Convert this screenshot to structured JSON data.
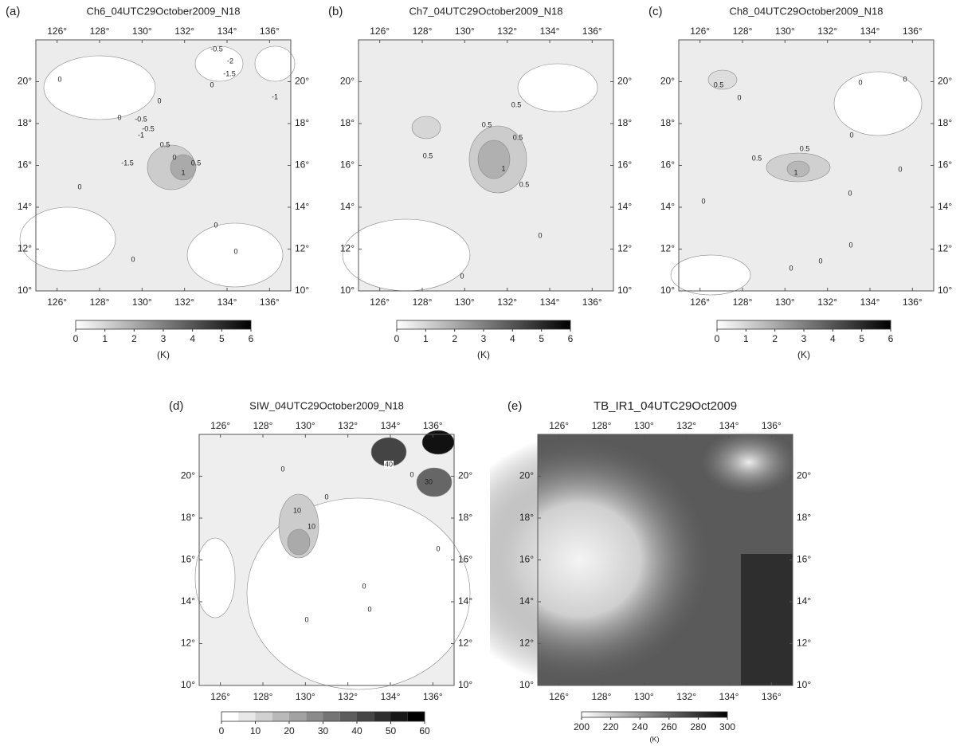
{
  "map": {
    "xlim": [
      125,
      137
    ],
    "ylim": [
      10,
      22
    ],
    "xticks": [
      {
        "value": 126,
        "label": "126°"
      },
      {
        "value": 128,
        "label": "128°"
      },
      {
        "value": 130,
        "label": "130°"
      },
      {
        "value": 132,
        "label": "132°"
      },
      {
        "value": 134,
        "label": "134°"
      },
      {
        "value": 136,
        "label": "136°"
      }
    ],
    "yticks": [
      {
        "value": 10,
        "label": "10°"
      },
      {
        "value": 12,
        "label": "12°"
      },
      {
        "value": 14,
        "label": "14°"
      },
      {
        "value": 16,
        "label": "16°"
      },
      {
        "value": 18,
        "label": "18°"
      },
      {
        "value": 20,
        "label": "20°"
      }
    ]
  },
  "panels": [
    {
      "tag": "(a)",
      "title": "Ch6_04UTC29October2009_N18",
      "contour_labels": [
        "0",
        "-0.5",
        "-2",
        "-1.5",
        "0",
        "0",
        "-1",
        "0",
        "-0.5",
        "-0.5",
        "-1",
        "-1.5",
        "0.5",
        "0.5",
        "1",
        "0",
        "0",
        "0",
        "0",
        "0"
      ],
      "colorbar": {
        "ticks": [
          0,
          1,
          2,
          3,
          4,
          5,
          6
        ],
        "unit": "(K)"
      }
    },
    {
      "tag": "(b)",
      "title": "Ch7_04UTC29October2009_N18",
      "contour_labels": [
        "0.5",
        "0.5",
        "0.5",
        "0.5",
        "1",
        "0.5",
        "0",
        "0"
      ],
      "colorbar": {
        "ticks": [
          0,
          1,
          2,
          3,
          4,
          5,
          6
        ],
        "unit": "(K)"
      }
    },
    {
      "tag": "(c)",
      "title": "Ch8_04UTC29October2009_N18",
      "contour_labels": [
        "0.5",
        "0",
        "0",
        "0",
        "0",
        "0.5",
        "0.5",
        "1",
        "0",
        "0",
        "0",
        "0",
        "0",
        "0"
      ],
      "colorbar": {
        "ticks": [
          0,
          1,
          2,
          3,
          4,
          5,
          6
        ],
        "unit": "(K)"
      }
    },
    {
      "tag": "(d)",
      "title": "SIW_04UTC29October2009_N18",
      "contour_labels": [
        "0",
        "40",
        "0",
        "30",
        "0",
        "10",
        "10",
        "0",
        "0",
        "0",
        "0"
      ],
      "colorbar": {
        "ticks": [
          0,
          10,
          20,
          30,
          40,
          50,
          60
        ]
      }
    },
    {
      "tag": "(e)",
      "title": "TB_IR1_04UTC29Oct2009",
      "colorbar": {
        "ticks": [
          200,
          220,
          240,
          260,
          280,
          300
        ],
        "unit": "(K)"
      }
    }
  ]
}
